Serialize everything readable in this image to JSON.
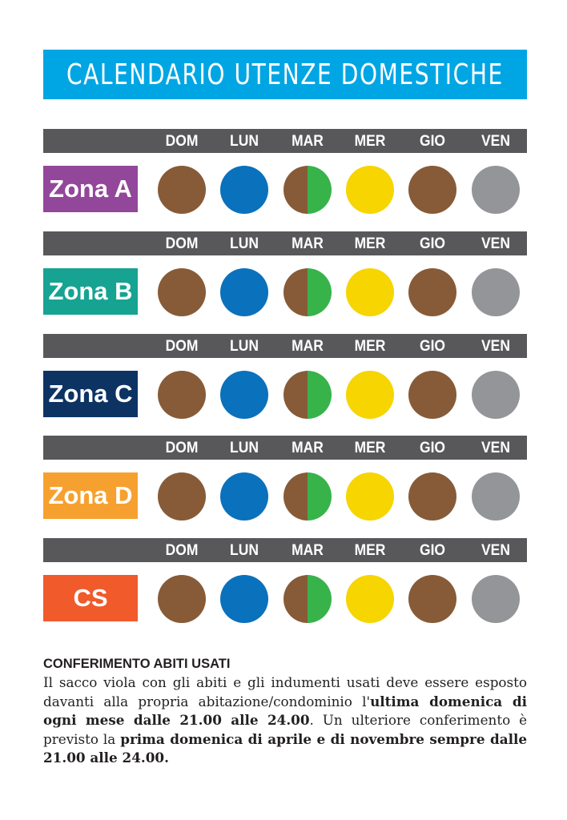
{
  "title": "CALENDARIO UTENZE DOMESTICHE",
  "colors": {
    "title_bg": "#00a6e4",
    "day_bar": "#58585a",
    "brown": "#875b37",
    "blue": "#0a71bc",
    "green": "#37b34a",
    "yellow": "#f6d500",
    "grey": "#939598"
  },
  "days": [
    "DOM",
    "LUN",
    "MAR",
    "MER",
    "GIO",
    "VEN"
  ],
  "zones": [
    {
      "label": "Zona A",
      "color": "#93479a",
      "days": [
        "brown",
        "blue",
        "brown-green",
        "yellow",
        "brown",
        "grey"
      ]
    },
    {
      "label": "Zona B",
      "color": "#16a392",
      "days": [
        "brown",
        "blue",
        "brown-green",
        "yellow",
        "brown",
        "grey"
      ]
    },
    {
      "label": "Zona C",
      "color": "#0d3363",
      "days": [
        "brown",
        "blue",
        "brown-green",
        "yellow",
        "brown",
        "grey"
      ]
    },
    {
      "label": "Zona D",
      "color": "#f6a12f",
      "days": [
        "brown",
        "blue",
        "brown-green",
        "yellow",
        "brown",
        "grey"
      ]
    },
    {
      "label": "CS",
      "color": "#f15a2b",
      "days": [
        "brown",
        "blue",
        "brown-green",
        "yellow",
        "brown",
        "grey"
      ]
    }
  ],
  "info": {
    "heading": "CONFERIMENTO ABITI USATI",
    "text1": "Il sacco viola con gli abiti e gli indumenti usati deve essere esposto davanti alla propria abitazione/condominio l'",
    "bold1": "ultima domenica di ogni mese dalle 21.00 alle 24.00",
    "text2": ". Un ulteriore conferimento è previsto la ",
    "bold2": "prima domenica di aprile e di novembre sempre dalle 21.00 alle 24.00."
  }
}
